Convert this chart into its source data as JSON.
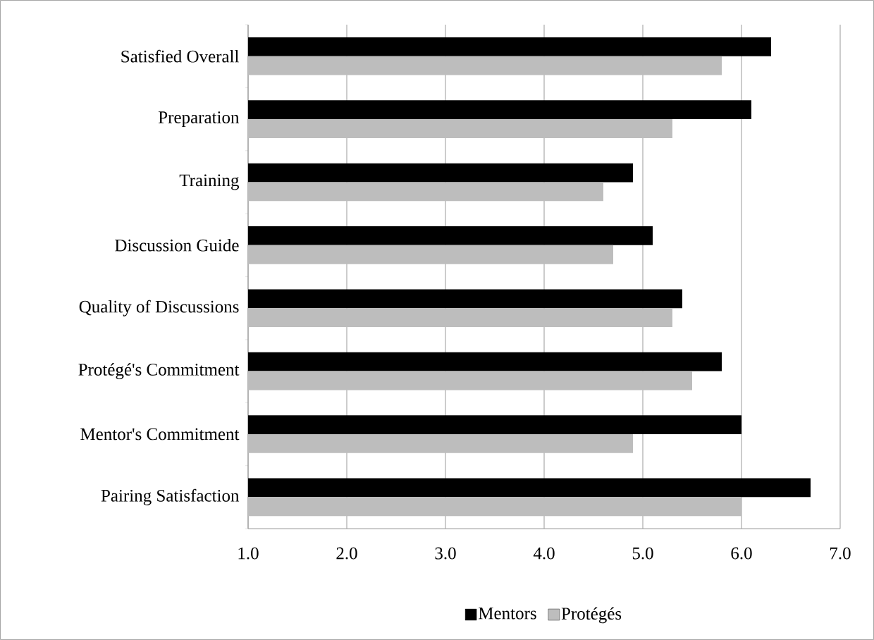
{
  "chart_data": {
    "type": "bar",
    "orientation": "horizontal",
    "categories": [
      "Satisfied Overall",
      "Preparation",
      "Training",
      "Discussion Guide",
      "Quality of Discussions",
      "Protégé's Commitment",
      "Mentor's Commitment",
      "Pairing Satisfaction"
    ],
    "series": [
      {
        "name": "Mentors",
        "color": "#000000",
        "values": [
          6.3,
          6.1,
          4.9,
          5.1,
          5.4,
          5.8,
          6.0,
          6.7
        ]
      },
      {
        "name": "Protégés",
        "color": "#bdbdbd",
        "values": [
          5.8,
          5.3,
          4.6,
          4.7,
          5.3,
          5.5,
          4.9,
          6.0
        ]
      }
    ],
    "xlim": [
      1,
      7
    ],
    "xticks": [
      {
        "value": 1,
        "label": "1.0"
      },
      {
        "value": 2,
        "label": "2.0"
      },
      {
        "value": 3,
        "label": "3.0"
      },
      {
        "value": 4,
        "label": "4.0"
      },
      {
        "value": 5,
        "label": "5.0"
      },
      {
        "value": 6,
        "label": "6.0"
      },
      {
        "value": 7,
        "label": "7.0"
      }
    ],
    "grid": "x",
    "legend": "bottom"
  }
}
